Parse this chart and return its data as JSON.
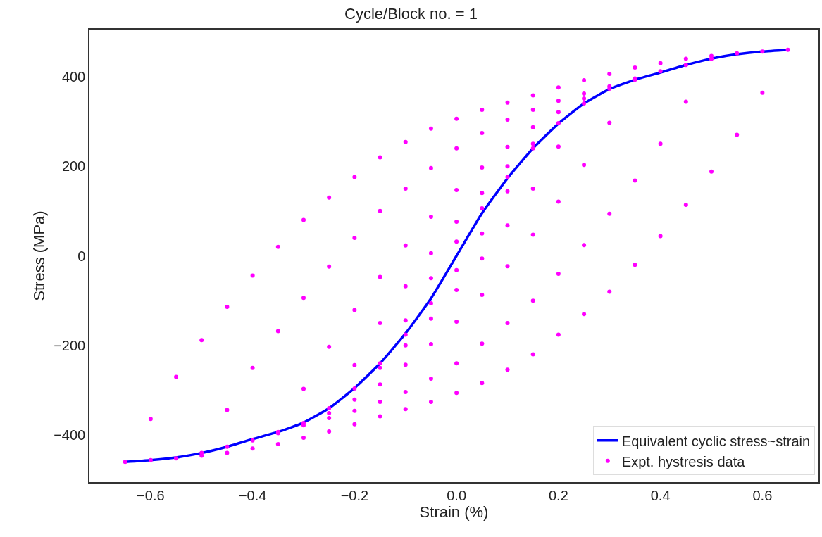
{
  "chart_data": {
    "type": "line",
    "title": "Cycle/Block no. = 1",
    "xlabel": "Strain (%)",
    "ylabel": "Stress (MPa)",
    "xlim": [
      -0.72,
      0.71
    ],
    "ylim": [
      -505,
      505
    ],
    "xticks": [
      {
        "value": -0.6,
        "label": "−0.6"
      },
      {
        "value": -0.4,
        "label": "−0.4"
      },
      {
        "value": -0.2,
        "label": "−0.2"
      },
      {
        "value": 0,
        "label": "0.0"
      },
      {
        "value": 0.2,
        "label": "0.2"
      },
      {
        "value": 0.4,
        "label": "0.4"
      },
      {
        "value": 0.6,
        "label": "0.6"
      }
    ],
    "yticks": [
      {
        "value": -400,
        "label": "−400"
      },
      {
        "value": -200,
        "label": "−200"
      },
      0,
      200,
      400
    ],
    "legend": "bottom right",
    "series": [
      {
        "name": "Equivalent cyclic stress~strain",
        "color": "#0000ff",
        "marker": "none",
        "line_style": "solid",
        "x": [
          -0.65,
          -0.6,
          -0.55,
          -0.5,
          -0.45,
          -0.4,
          -0.35,
          -0.3,
          -0.25,
          -0.2,
          -0.15,
          -0.1,
          -0.05,
          0,
          0.05,
          0.1,
          0.15,
          0.2,
          0.25,
          0.3,
          0.35,
          0.4,
          0.45,
          0.5,
          0.55,
          0.6,
          0.65
        ],
        "values": [
          -460,
          -456,
          -450,
          -440,
          -426,
          -409,
          -393,
          -372,
          -340,
          -295,
          -240,
          -173,
          -95,
          0,
          95,
          173,
          240,
          295,
          340,
          372,
          393,
          409,
          426,
          440,
          450,
          456,
          460
        ]
      },
      {
        "name": "Expt. hystresis data",
        "type": "scatter",
        "color": "#ff00ff",
        "marker": "circle",
        "x": [
          -0.15,
          -0.1,
          -0.05,
          0,
          0.05,
          0.1,
          0.15,
          0.1,
          0.05,
          0,
          -0.05,
          -0.1,
          -0.25,
          -0.2,
          -0.15,
          -0.1,
          -0.05,
          0,
          0.05,
          0.1,
          0.15,
          0.2,
          0.25,
          0.2,
          0.15,
          0.1,
          0.05,
          0,
          -0.05,
          -0.1,
          -0.15,
          -0.2,
          -0.35,
          -0.3,
          -0.25,
          -0.2,
          -0.15,
          -0.1,
          -0.05,
          0,
          0.05,
          0.1,
          0.15,
          0.2,
          0.25,
          0.3,
          0.35,
          0.3,
          0.25,
          0.2,
          0.15,
          0.1,
          0.05,
          0,
          -0.05,
          -0.1,
          -0.15,
          -0.2,
          -0.25,
          -0.3,
          -0.5,
          -0.45,
          -0.4,
          -0.35,
          -0.3,
          -0.25,
          -0.2,
          -0.15,
          -0.1,
          -0.05,
          0,
          0.05,
          0.1,
          0.15,
          0.2,
          0.25,
          0.3,
          0.35,
          0.4,
          0.45,
          0.5,
          0.45,
          0.4,
          0.35,
          0.3,
          0.25,
          0.2,
          0.15,
          0.1,
          0.05,
          0,
          -0.05,
          -0.1,
          -0.15,
          -0.2,
          -0.25,
          -0.3,
          -0.35,
          -0.4,
          -0.45,
          -0.65,
          -0.6,
          -0.55,
          -0.5,
          -0.45,
          -0.4,
          -0.35,
          -0.3,
          -0.25,
          -0.2,
          -0.15,
          -0.1,
          -0.05,
          0,
          0.05,
          0.1,
          0.15,
          0.2,
          0.25,
          0.3,
          0.35,
          0.4,
          0.45,
          0.5,
          0.55,
          0.6,
          0.65,
          0.6,
          0.55,
          0.5,
          0.45,
          0.4,
          0.35,
          0.3,
          0.25,
          0.2,
          0.15,
          0.1,
          0.05,
          0,
          -0.05,
          -0.1,
          -0.15,
          -0.2,
          -0.25,
          -0.3,
          -0.35,
          -0.4,
          -0.45,
          -0.5,
          -0.55,
          -0.6
        ],
        "values": [
          -240,
          -144,
          -50,
          32,
          106,
          176,
          240,
          144,
          50,
          -32,
          -106,
          -176,
          -340,
          -244,
          -150,
          -68,
          6,
          76,
          140,
          200,
          250,
          296,
          340,
          244,
          150,
          68,
          -6,
          -76,
          -140,
          -200,
          -250,
          -296,
          -393,
          -297,
          -203,
          -121,
          -47,
          23,
          87,
          147,
          197,
          243,
          287,
          321,
          351,
          373,
          393,
          297,
          203,
          121,
          47,
          -23,
          -87,
          -147,
          -197,
          -243,
          -287,
          -321,
          -351,
          -373,
          -440,
          -344,
          -250,
          -168,
          -94,
          -24,
          40,
          100,
          150,
          196,
          240,
          274,
          304,
          326,
          346,
          362,
          378,
          396,
          412,
          426,
          440,
          344,
          250,
          168,
          94,
          24,
          -40,
          -100,
          -150,
          -196,
          -240,
          -274,
          -304,
          -326,
          -346,
          -362,
          -378,
          -396,
          -412,
          -426,
          -460,
          -364,
          -270,
          -188,
          -114,
          -44,
          20,
          80,
          130,
          176,
          220,
          254,
          284,
          306,
          326,
          342,
          358,
          376,
          392,
          406,
          420,
          430,
          440,
          446,
          452,
          456,
          460,
          364,
          270,
          188,
          114,
          44,
          -20,
          -80,
          -130,
          -176,
          -220,
          -254,
          -284,
          -306,
          -326,
          -342,
          -358,
          -376,
          -392,
          -406,
          -420,
          -430,
          -440,
          -446,
          -452,
          -456
        ]
      }
    ]
  }
}
